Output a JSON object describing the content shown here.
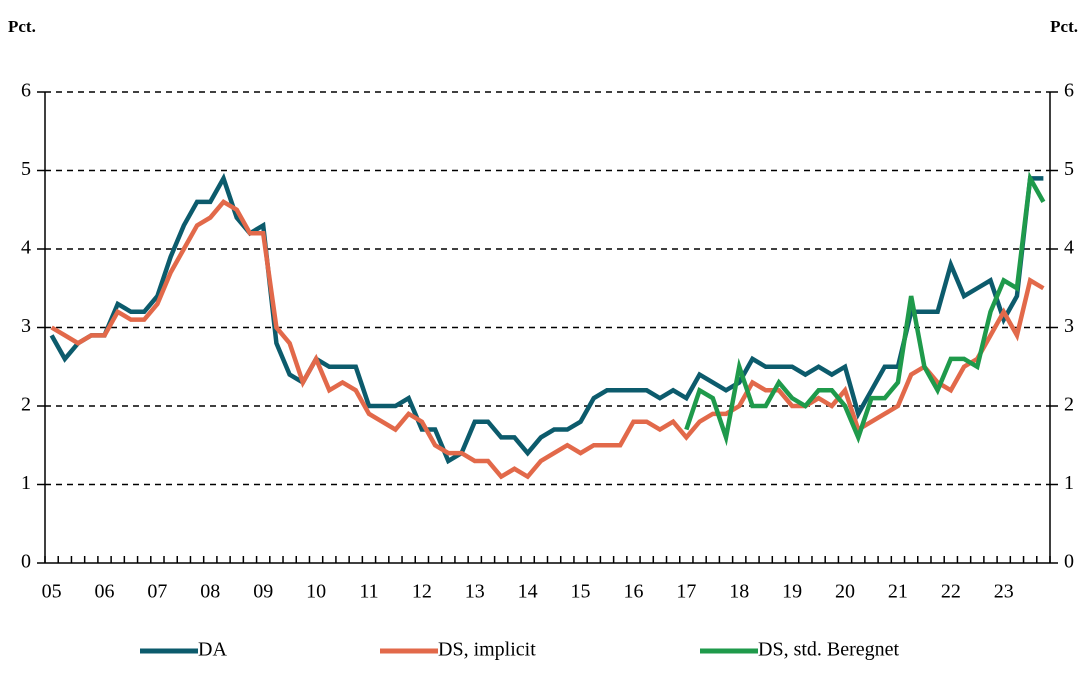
{
  "chart_data": {
    "type": "line",
    "y_label": "Pct.",
    "y2_label": "Pct.",
    "categories": [
      "05",
      null,
      null,
      null,
      "06",
      null,
      null,
      null,
      "07",
      null,
      null,
      null,
      "08",
      null,
      null,
      null,
      "09",
      null,
      null,
      null,
      "10",
      null,
      null,
      null,
      "11",
      null,
      null,
      null,
      "12",
      null,
      null,
      null,
      "13",
      null,
      null,
      null,
      "14",
      null,
      null,
      null,
      "15",
      null,
      null,
      null,
      "16",
      null,
      null,
      null,
      "17",
      null,
      null,
      null,
      "18",
      null,
      null,
      null,
      "19",
      null,
      null,
      null,
      "20",
      null,
      null,
      null,
      "21",
      null,
      null,
      null,
      "22",
      null,
      null,
      null,
      "23",
      null,
      null,
      null
    ],
    "series": [
      {
        "name": "DA",
        "color": "#0c5b6c",
        "values": [
          2.9,
          2.6,
          2.8,
          2.9,
          2.9,
          3.3,
          3.2,
          3.2,
          3.4,
          3.9,
          4.3,
          4.6,
          4.6,
          4.9,
          4.4,
          4.2,
          4.3,
          2.8,
          2.4,
          2.3,
          2.6,
          2.5,
          2.5,
          2.5,
          2.0,
          2.0,
          2.0,
          2.1,
          1.7,
          1.7,
          1.3,
          1.4,
          1.8,
          1.8,
          1.6,
          1.6,
          1.4,
          1.6,
          1.7,
          1.7,
          1.8,
          2.1,
          2.2,
          2.2,
          2.2,
          2.2,
          2.1,
          2.2,
          2.1,
          2.4,
          2.3,
          2.2,
          2.3,
          2.6,
          2.5,
          2.5,
          2.5,
          2.4,
          2.5,
          2.4,
          2.5,
          1.9,
          2.2,
          2.5,
          2.5,
          3.2,
          3.2,
          3.2,
          3.8,
          3.4,
          3.5,
          3.6,
          3.1,
          3.4,
          4.9,
          4.9
        ]
      },
      {
        "name": "DS, implicit",
        "color": "#e2694a",
        "values": [
          3.0,
          2.9,
          2.8,
          2.9,
          2.9,
          3.2,
          3.1,
          3.1,
          3.3,
          3.7,
          4.0,
          4.3,
          4.4,
          4.6,
          4.5,
          4.2,
          4.2,
          3.0,
          2.8,
          2.3,
          2.6,
          2.2,
          2.3,
          2.2,
          1.9,
          1.8,
          1.7,
          1.9,
          1.8,
          1.5,
          1.4,
          1.4,
          1.3,
          1.3,
          1.1,
          1.2,
          1.1,
          1.3,
          1.4,
          1.5,
          1.4,
          1.5,
          1.5,
          1.5,
          1.8,
          1.8,
          1.7,
          1.8,
          1.6,
          1.8,
          1.9,
          1.9,
          2.0,
          2.3,
          2.2,
          2.2,
          2.0,
          2.0,
          2.1,
          2.0,
          2.2,
          1.7,
          1.8,
          1.9,
          2.0,
          2.4,
          2.5,
          2.3,
          2.2,
          2.5,
          2.6,
          2.9,
          3.2,
          2.9,
          3.6,
          3.5
        ]
      },
      {
        "name": "DS, std. Beregnet",
        "color": "#1f9a4b",
        "values": [
          null,
          null,
          null,
          null,
          null,
          null,
          null,
          null,
          null,
          null,
          null,
          null,
          null,
          null,
          null,
          null,
          null,
          null,
          null,
          null,
          null,
          null,
          null,
          null,
          null,
          null,
          null,
          null,
          null,
          null,
          null,
          null,
          null,
          null,
          null,
          null,
          null,
          null,
          null,
          null,
          null,
          null,
          null,
          null,
          null,
          null,
          null,
          null,
          1.7,
          2.2,
          2.1,
          1.6,
          2.5,
          2.0,
          2.0,
          2.3,
          2.1,
          2.0,
          2.2,
          2.2,
          2.0,
          1.6,
          2.1,
          2.1,
          2.3,
          3.4,
          2.5,
          2.2,
          2.6,
          2.6,
          2.5,
          3.2,
          3.6,
          3.5,
          4.9,
          4.6
        ]
      }
    ],
    "ylim": [
      0,
      6
    ],
    "yticks": [
      0,
      1,
      2,
      3,
      4,
      5,
      6
    ],
    "y2lim": [
      0,
      6
    ],
    "y2ticks": [
      0,
      1,
      2,
      3,
      4,
      5,
      6
    ],
    "grid": true
  }
}
